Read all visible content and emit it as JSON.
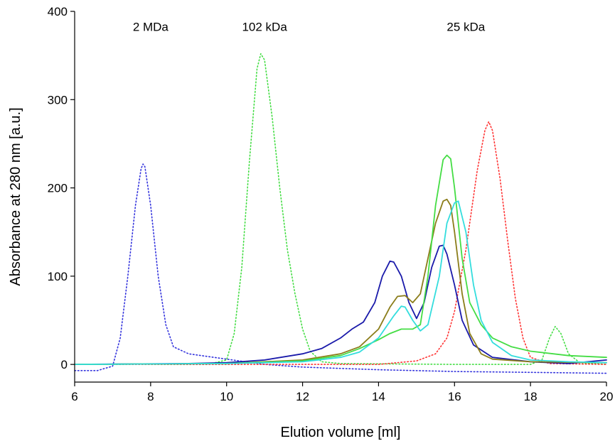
{
  "chart_data": {
    "type": "line",
    "xlabel": "Elution volume [ml]",
    "ylabel": "Absorbance at 280 nm [a.u.]",
    "xlim": [
      6,
      20
    ],
    "ylim": [
      -20,
      400
    ],
    "xticks": [
      6,
      8,
      10,
      12,
      14,
      16,
      18,
      20
    ],
    "yticks": [
      0,
      100,
      200,
      300,
      400
    ],
    "grid": false,
    "annotations": [
      {
        "text": "2 MDa",
        "x": 8.0,
        "y": 378
      },
      {
        "text": "102 kDa",
        "x": 11.0,
        "y": 378
      },
      {
        "text": "25 kDa",
        "x": 16.3,
        "y": 378
      }
    ],
    "series": [
      {
        "style": "dotted",
        "color": "#3333dd",
        "points": [
          [
            6.0,
            -7
          ],
          [
            6.6,
            -7
          ],
          [
            7.0,
            -2
          ],
          [
            7.2,
            30
          ],
          [
            7.4,
            100
          ],
          [
            7.6,
            180
          ],
          [
            7.75,
            222
          ],
          [
            7.8,
            227
          ],
          [
            7.85,
            224
          ],
          [
            8.0,
            180
          ],
          [
            8.2,
            100
          ],
          [
            8.4,
            45
          ],
          [
            8.6,
            20
          ],
          [
            9.0,
            12
          ],
          [
            10.0,
            6
          ],
          [
            11.0,
            0
          ],
          [
            12.0,
            -3
          ],
          [
            14.0,
            -6
          ],
          [
            16.0,
            -8
          ],
          [
            18.0,
            -9
          ],
          [
            20.0,
            -10
          ]
        ]
      },
      {
        "style": "dotted",
        "color": "#44dd44",
        "points": [
          [
            6.0,
            0
          ],
          [
            9.5,
            0
          ],
          [
            10.0,
            5
          ],
          [
            10.2,
            35
          ],
          [
            10.4,
            110
          ],
          [
            10.6,
            230
          ],
          [
            10.8,
            335
          ],
          [
            10.9,
            352
          ],
          [
            11.0,
            345
          ],
          [
            11.2,
            280
          ],
          [
            11.4,
            200
          ],
          [
            11.6,
            130
          ],
          [
            11.8,
            80
          ],
          [
            12.0,
            40
          ],
          [
            12.2,
            15
          ],
          [
            12.5,
            3
          ],
          [
            13.0,
            1
          ],
          [
            16.0,
            0
          ],
          [
            18.0,
            0
          ],
          [
            18.3,
            5
          ],
          [
            18.5,
            30
          ],
          [
            18.65,
            43
          ],
          [
            18.8,
            35
          ],
          [
            19.0,
            12
          ],
          [
            19.3,
            2
          ],
          [
            20.0,
            0
          ]
        ]
      },
      {
        "style": "dotted",
        "color": "#ff3333",
        "points": [
          [
            6.0,
            0
          ],
          [
            14.0,
            0
          ],
          [
            15.0,
            4
          ],
          [
            15.5,
            12
          ],
          [
            15.8,
            30
          ],
          [
            16.0,
            60
          ],
          [
            16.3,
            130
          ],
          [
            16.6,
            220
          ],
          [
            16.8,
            265
          ],
          [
            16.9,
            275
          ],
          [
            17.0,
            265
          ],
          [
            17.2,
            210
          ],
          [
            17.4,
            140
          ],
          [
            17.6,
            75
          ],
          [
            17.8,
            30
          ],
          [
            18.0,
            8
          ],
          [
            18.5,
            1
          ],
          [
            20.0,
            0
          ]
        ]
      },
      {
        "style": "solid",
        "color": "#1a1aaa",
        "points": [
          [
            6.0,
            0
          ],
          [
            9.0,
            1
          ],
          [
            10.0,
            2
          ],
          [
            11.0,
            5
          ],
          [
            12.0,
            12
          ],
          [
            12.5,
            18
          ],
          [
            13.0,
            30
          ],
          [
            13.3,
            40
          ],
          [
            13.6,
            48
          ],
          [
            13.9,
            70
          ],
          [
            14.1,
            100
          ],
          [
            14.3,
            117
          ],
          [
            14.4,
            116
          ],
          [
            14.6,
            100
          ],
          [
            14.8,
            70
          ],
          [
            15.0,
            52
          ],
          [
            15.2,
            70
          ],
          [
            15.4,
            110
          ],
          [
            15.6,
            134
          ],
          [
            15.7,
            135
          ],
          [
            15.8,
            125
          ],
          [
            16.0,
            90
          ],
          [
            16.2,
            50
          ],
          [
            16.5,
            22
          ],
          [
            17.0,
            8
          ],
          [
            18.0,
            3
          ],
          [
            19.0,
            1
          ],
          [
            20.0,
            5
          ]
        ]
      },
      {
        "style": "solid",
        "color": "#8b7d1a",
        "points": [
          [
            6.0,
            0
          ],
          [
            10.0,
            1
          ],
          [
            12.0,
            5
          ],
          [
            13.0,
            12
          ],
          [
            13.5,
            20
          ],
          [
            14.0,
            40
          ],
          [
            14.3,
            65
          ],
          [
            14.5,
            77
          ],
          [
            14.7,
            78
          ],
          [
            14.9,
            70
          ],
          [
            15.1,
            80
          ],
          [
            15.3,
            120
          ],
          [
            15.5,
            160
          ],
          [
            15.7,
            185
          ],
          [
            15.8,
            187
          ],
          [
            15.9,
            180
          ],
          [
            16.0,
            150
          ],
          [
            16.2,
            80
          ],
          [
            16.4,
            35
          ],
          [
            16.7,
            12
          ],
          [
            17.0,
            6
          ],
          [
            18.0,
            3
          ],
          [
            20.0,
            2
          ]
        ]
      },
      {
        "style": "solid",
        "color": "#44dd44",
        "points": [
          [
            6.0,
            0
          ],
          [
            10.0,
            1
          ],
          [
            12.0,
            4
          ],
          [
            13.0,
            10
          ],
          [
            13.5,
            18
          ],
          [
            14.0,
            28
          ],
          [
            14.3,
            35
          ],
          [
            14.6,
            40
          ],
          [
            14.9,
            40
          ],
          [
            15.1,
            45
          ],
          [
            15.3,
            100
          ],
          [
            15.5,
            180
          ],
          [
            15.7,
            232
          ],
          [
            15.8,
            237
          ],
          [
            15.9,
            233
          ],
          [
            16.0,
            200
          ],
          [
            16.2,
            120
          ],
          [
            16.4,
            70
          ],
          [
            16.7,
            45
          ],
          [
            17.0,
            30
          ],
          [
            17.5,
            20
          ],
          [
            18.0,
            15
          ],
          [
            19.0,
            10
          ],
          [
            20.0,
            8
          ]
        ]
      },
      {
        "style": "solid",
        "color": "#33dddd",
        "points": [
          [
            6.0,
            0
          ],
          [
            10.0,
            1
          ],
          [
            12.0,
            3
          ],
          [
            13.0,
            8
          ],
          [
            13.5,
            14
          ],
          [
            14.0,
            30
          ],
          [
            14.4,
            55
          ],
          [
            14.6,
            66
          ],
          [
            14.7,
            65
          ],
          [
            14.9,
            50
          ],
          [
            15.1,
            38
          ],
          [
            15.3,
            45
          ],
          [
            15.6,
            100
          ],
          [
            15.8,
            160
          ],
          [
            16.0,
            183
          ],
          [
            16.1,
            185
          ],
          [
            16.3,
            150
          ],
          [
            16.5,
            90
          ],
          [
            16.7,
            50
          ],
          [
            17.0,
            25
          ],
          [
            17.5,
            10
          ],
          [
            18.0,
            5
          ],
          [
            19.0,
            3
          ],
          [
            20.0,
            2
          ]
        ]
      }
    ]
  }
}
